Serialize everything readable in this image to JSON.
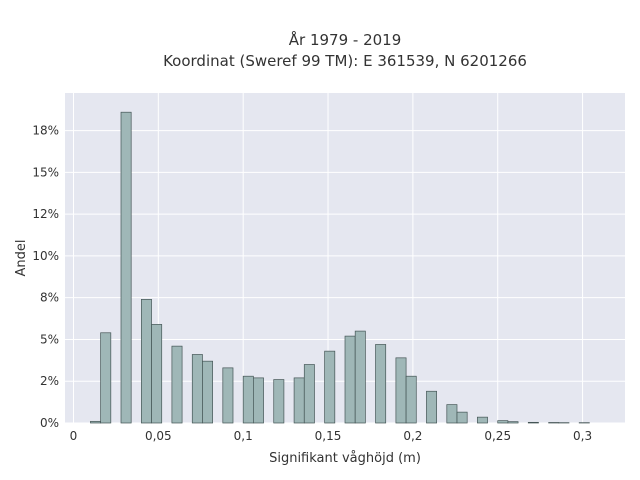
{
  "chart_data": {
    "type": "bar",
    "title": "År 1979 - 2019",
    "subtitle": "Koordinat (Sweref 99 TM): E 361539, N 6201266",
    "xlabel": "Signifikant våghöjd (m)",
    "ylabel": "Andel",
    "xlim": [
      -0.005,
      0.325
    ],
    "ylim": [
      0,
      0.1975
    ],
    "x_ticks": [
      {
        "value": 0,
        "label": "0"
      },
      {
        "value": 0.05,
        "label": "0,05"
      },
      {
        "value": 0.1,
        "label": "0,1"
      },
      {
        "value": 0.15,
        "label": "0,15"
      },
      {
        "value": 0.2,
        "label": "0,2"
      },
      {
        "value": 0.25,
        "label": "0,25"
      },
      {
        "value": 0.3,
        "label": "0,3"
      }
    ],
    "y_ticks": [
      {
        "value": 0,
        "label": "0%"
      },
      {
        "value": 0.025,
        "label": "2%"
      },
      {
        "value": 0.05,
        "label": "5%"
      },
      {
        "value": 0.075,
        "label": "8%"
      },
      {
        "value": 0.1,
        "label": "10%"
      },
      {
        "value": 0.125,
        "label": "12%"
      },
      {
        "value": 0.15,
        "label": "15%"
      },
      {
        "value": 0.175,
        "label": "18%"
      }
    ],
    "grid": true,
    "bin_width": 0.006,
    "bars": [
      {
        "x": 0.013,
        "value": 0.001
      },
      {
        "x": 0.019,
        "value": 0.054
      },
      {
        "x": 0.031,
        "value": 0.186
      },
      {
        "x": 0.043,
        "value": 0.074
      },
      {
        "x": 0.049,
        "value": 0.059
      },
      {
        "x": 0.061,
        "value": 0.046
      },
      {
        "x": 0.073,
        "value": 0.041
      },
      {
        "x": 0.079,
        "value": 0.037
      },
      {
        "x": 0.091,
        "value": 0.033
      },
      {
        "x": 0.103,
        "value": 0.028
      },
      {
        "x": 0.109,
        "value": 0.027
      },
      {
        "x": 0.121,
        "value": 0.026
      },
      {
        "x": 0.133,
        "value": 0.027
      },
      {
        "x": 0.139,
        "value": 0.035
      },
      {
        "x": 0.151,
        "value": 0.043
      },
      {
        "x": 0.163,
        "value": 0.052
      },
      {
        "x": 0.169,
        "value": 0.055
      },
      {
        "x": 0.181,
        "value": 0.047
      },
      {
        "x": 0.193,
        "value": 0.039
      },
      {
        "x": 0.199,
        "value": 0.028
      },
      {
        "x": 0.211,
        "value": 0.019
      },
      {
        "x": 0.223,
        "value": 0.011
      },
      {
        "x": 0.229,
        "value": 0.0065
      },
      {
        "x": 0.241,
        "value": 0.0035
      },
      {
        "x": 0.253,
        "value": 0.0014
      },
      {
        "x": 0.259,
        "value": 0.0008
      },
      {
        "x": 0.271,
        "value": 0.0004
      },
      {
        "x": 0.283,
        "value": 0.0003
      },
      {
        "x": 0.289,
        "value": 0.0002
      },
      {
        "x": 0.301,
        "value": 0.0002
      }
    ],
    "colors": {
      "bar_fill": "#9fb7b7",
      "bar_stroke": "#445555",
      "plot_bg": "#e5e7f0",
      "grid": "#ffffff",
      "text": "#333333"
    }
  }
}
